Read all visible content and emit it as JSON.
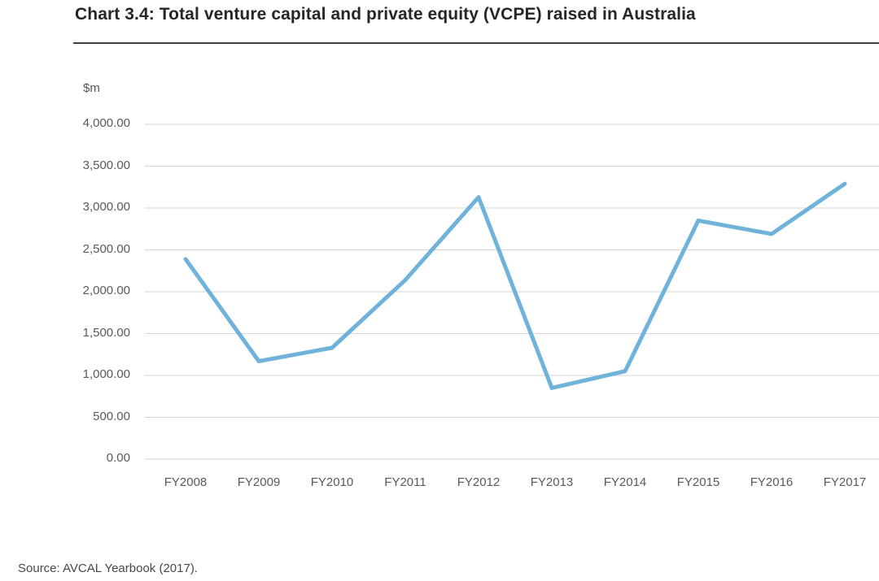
{
  "page": {
    "title": "Chart 3.4: Total venture capital and private equity (VCPE) raised in Australia",
    "source": "Source: AVCAL Yearbook (2017)."
  },
  "chart_data": {
    "type": "line",
    "title": "Chart 3.4: Total venture capital and private equity (VCPE) raised in Australia",
    "unit_label": "$m",
    "categories": [
      "FY2008",
      "FY2009",
      "FY2010",
      "FY2011",
      "FY2012",
      "FY2013",
      "FY2014",
      "FY2015",
      "FY2016",
      "FY2017"
    ],
    "values": [
      2390,
      1170,
      1330,
      2140,
      3130,
      850,
      1050,
      2850,
      2690,
      3290
    ],
    "ylim": [
      0,
      4000
    ],
    "ytick_values": [
      0,
      500,
      1000,
      1500,
      2000,
      2500,
      3000,
      3500,
      4000
    ],
    "ytick_labels": [
      "0.00",
      "500.00",
      "1,000.00",
      "1,500.00",
      "2,000.00",
      "2,500.00",
      "3,000.00",
      "3,500.00",
      "4,000.00"
    ],
    "grid": "horizontal-only",
    "legend": "none",
    "source": "Source: AVCAL Yearbook (2017).",
    "colors": {
      "line": "#6FB3DA",
      "gridline": "#d6d6d6",
      "tick_text": "#595959",
      "title_text": "#262626",
      "rule": "#3d3d3d"
    }
  }
}
